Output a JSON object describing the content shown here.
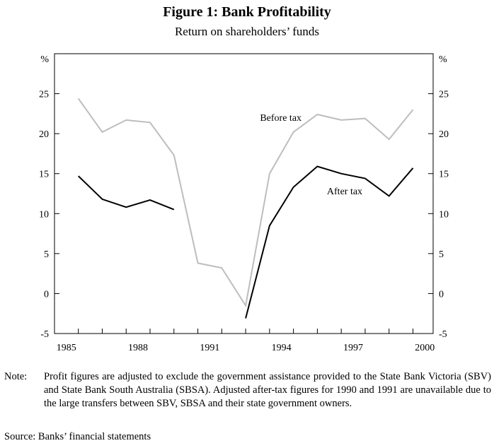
{
  "chart_data": {
    "type": "line",
    "title": "Figure 1: Bank Profitability",
    "subtitle": "Return on shareholders’ funds",
    "y_unit_left": "%",
    "y_unit_right": "%",
    "ylim": [
      -5,
      30
    ],
    "y_ticks": [
      -5,
      0,
      5,
      10,
      15,
      20,
      25
    ],
    "xlim": [
      1985,
      2000
    ],
    "x_ticks": [
      1985,
      1988,
      1991,
      1994,
      1997,
      2000
    ],
    "series": [
      {
        "name": "Before tax",
        "color": "#bdbdbd",
        "points": [
          [
            1985,
            24.4
          ],
          [
            1986,
            20.2
          ],
          [
            1987,
            21.7
          ],
          [
            1988,
            21.4
          ],
          [
            1989,
            17.3
          ],
          [
            1990,
            3.8
          ],
          [
            1991,
            3.2
          ],
          [
            1992,
            -1.5
          ],
          [
            1993,
            15.0
          ],
          [
            1994,
            20.2
          ],
          [
            1995,
            22.4
          ],
          [
            1996,
            21.7
          ],
          [
            1997,
            21.9
          ],
          [
            1998,
            19.3
          ],
          [
            1999,
            23.0
          ]
        ]
      },
      {
        "name": "After tax",
        "color": "#000000",
        "segments": [
          [
            [
              1985,
              14.7
            ],
            [
              1986,
              11.8
            ],
            [
              1987,
              10.8
            ],
            [
              1988,
              11.7
            ],
            [
              1989,
              10.5
            ]
          ],
          [
            [
              1992,
              -3.1
            ],
            [
              1993,
              8.5
            ],
            [
              1994,
              13.3
            ],
            [
              1995,
              15.9
            ],
            [
              1996,
              15.0
            ],
            [
              1997,
              14.4
            ],
            [
              1998,
              12.2
            ],
            [
              1999,
              15.7
            ]
          ]
        ]
      }
    ],
    "annotations": [
      {
        "text": "Before tax",
        "series": "Before tax"
      },
      {
        "text": "After tax",
        "series": "After tax"
      }
    ]
  },
  "footnote": {
    "label": "Note:",
    "text": "Profit figures are adjusted to exclude the government assistance provided to the State Bank Victoria (SBV) and State Bank South Australia (SBSA). Adjusted after-tax figures for 1990 and 1991 are unavailable due to the large transfers between SBV, SBSA and their state government owners."
  },
  "source": "Source: Banks’ financial statements"
}
